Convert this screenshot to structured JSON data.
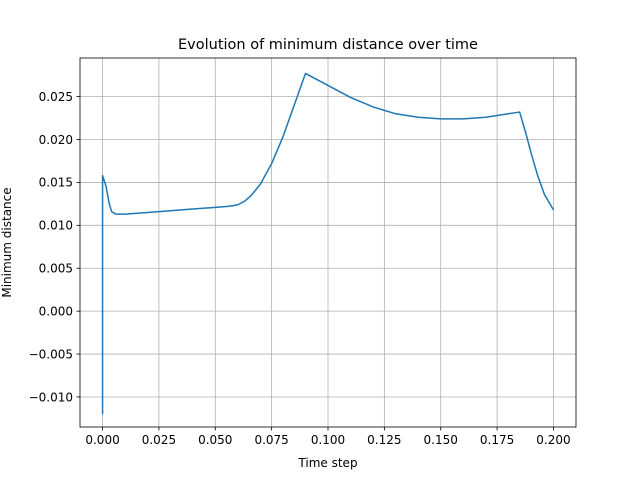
{
  "chart_data": {
    "type": "line",
    "title": "Evolution of minimum distance over time",
    "xlabel": "Time step",
    "ylabel": "Minimum distance",
    "xlim": [
      -0.01,
      0.21
    ],
    "ylim": [
      -0.0135,
      0.0295
    ],
    "grid": true,
    "x_ticks": [
      0.0,
      0.025,
      0.05,
      0.075,
      0.1,
      0.125,
      0.15,
      0.175,
      0.2
    ],
    "x_tick_labels": [
      "0.000",
      "0.025",
      "0.050",
      "0.075",
      "0.100",
      "0.125",
      "0.150",
      "0.175",
      "0.200"
    ],
    "y_ticks": [
      -0.01,
      -0.005,
      0.0,
      0.005,
      0.01,
      0.015,
      0.02,
      0.025
    ],
    "y_tick_labels": [
      "−0.010",
      "−0.005",
      "0.000",
      "0.005",
      "0.010",
      "0.015",
      "0.020",
      "0.025"
    ],
    "series": [
      {
        "color": "#1f77b4",
        "x": [
          0.0,
          0.0,
          0.0,
          0.0015,
          0.003,
          0.004,
          0.006,
          0.01,
          0.02,
          0.03,
          0.04,
          0.05,
          0.055,
          0.058,
          0.06,
          0.063,
          0.066,
          0.07,
          0.075,
          0.08,
          0.085,
          0.09,
          0.095,
          0.1,
          0.11,
          0.12,
          0.13,
          0.14,
          0.15,
          0.16,
          0.17,
          0.175,
          0.18,
          0.185,
          0.188,
          0.19,
          0.193,
          0.196,
          0.2
        ],
        "y": [
          -0.012,
          0.0158,
          0.0158,
          0.0146,
          0.0125,
          0.0116,
          0.0113,
          0.0113,
          0.0115,
          0.0117,
          0.0119,
          0.0121,
          0.0122,
          0.0123,
          0.0124,
          0.0128,
          0.0135,
          0.0148,
          0.0172,
          0.0203,
          0.024,
          0.0277,
          0.027,
          0.0263,
          0.0249,
          0.0238,
          0.023,
          0.0226,
          0.0224,
          0.0224,
          0.0226,
          0.0228,
          0.023,
          0.0232,
          0.0205,
          0.0185,
          0.0158,
          0.0136,
          0.0118
        ]
      }
    ]
  }
}
